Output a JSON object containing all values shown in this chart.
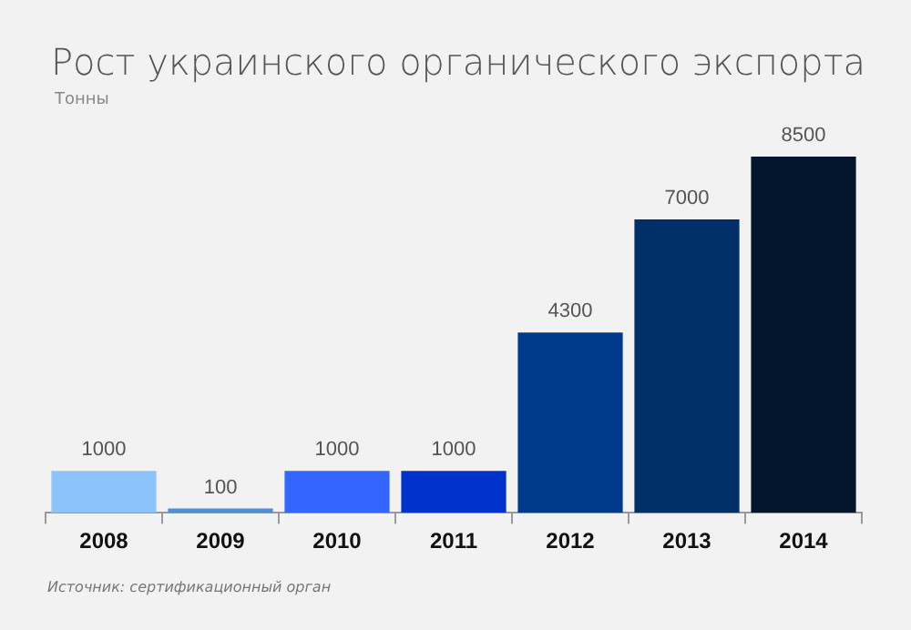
{
  "chart_data": {
    "type": "bar",
    "title": "Рост украинского органического экспорта",
    "subtitle": "Тонны",
    "categories": [
      "2008",
      "2009",
      "2010",
      "2011",
      "2012",
      "2013",
      "2014"
    ],
    "values": [
      1000,
      100,
      1000,
      1000,
      4300,
      7000,
      8500
    ],
    "colors": [
      "#8cc3fb",
      "#4f8fd8",
      "#3366ff",
      "#0033cc",
      "#003a8c",
      "#002e66",
      "#04162e"
    ],
    "data_labels": true,
    "annotations": [
      "Источник: сертификационный орган"
    ]
  }
}
